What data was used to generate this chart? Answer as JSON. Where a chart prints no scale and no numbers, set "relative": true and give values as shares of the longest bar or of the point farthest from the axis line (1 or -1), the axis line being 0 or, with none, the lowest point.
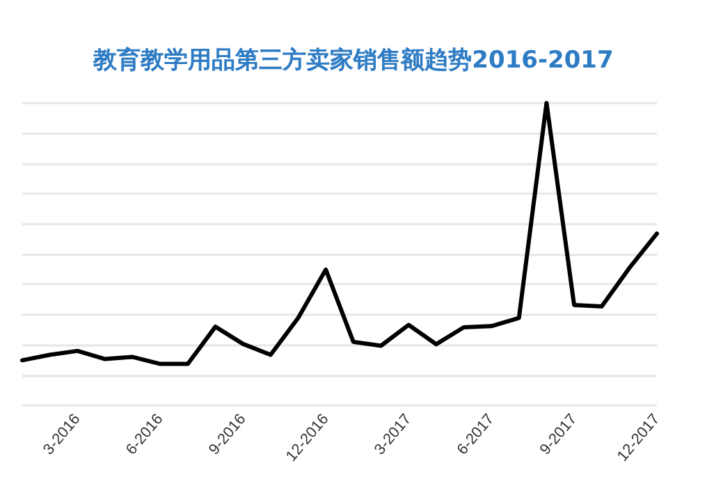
{
  "chart_data": {
    "type": "line",
    "title": "教育教学用品第三方卖家销售额趋势2016-2017",
    "relative": true,
    "grid": "y",
    "marker": "none",
    "line_style": "solid",
    "categories": [
      null,
      null,
      "3-2016",
      null,
      null,
      "6-2016",
      null,
      null,
      "9-2016",
      null,
      null,
      "12-2016",
      null,
      null,
      "3-2017",
      null,
      null,
      "6-2017",
      null,
      null,
      "9-2017",
      null,
      null,
      "12-2017"
    ],
    "series": [
      {
        "color": "#000000",
        "values": [
          0.149,
          0.167,
          0.18,
          0.153,
          0.16,
          0.137,
          0.137,
          0.26,
          0.203,
          0.167,
          0.289,
          0.449,
          0.21,
          0.197,
          0.266,
          0.202,
          0.258,
          0.262,
          0.289,
          1,
          0.332,
          0.327,
          0.454,
          0.568
        ]
      }
    ]
  }
}
